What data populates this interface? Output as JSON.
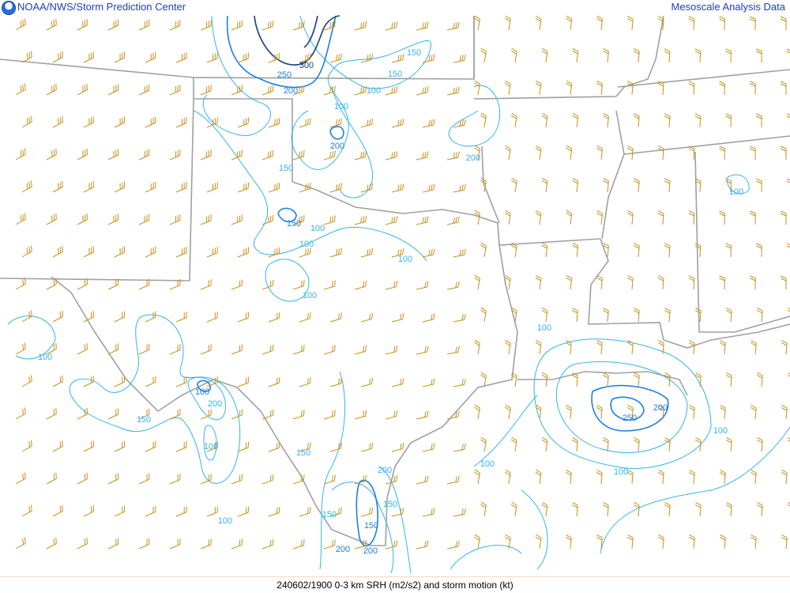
{
  "header": {
    "title_left": "NOAA/NWS/Storm Prediction Center",
    "title_right": "Mesoscale Analysis Data",
    "logo_icon": "noaa-logo"
  },
  "footer": {
    "caption": "240602/1900 0-3 km SRH (m2/s2) and storm motion (kt)"
  },
  "colors": {
    "border": "#a0a0a0",
    "barb": "#c8901a",
    "contour_100_150": "#33b5ea",
    "contour_200_250": "#1f7fe0",
    "contour_300": "#163f80",
    "title": "#1a3fbf"
  },
  "contour_levels": [
    100,
    150,
    200,
    250,
    300
  ],
  "contour_labels": [
    "300",
    "250",
    "200",
    "150",
    "150",
    "100",
    "100",
    "200",
    "150",
    "200",
    "150",
    "100",
    "100",
    "100",
    "100",
    "100",
    "100",
    "100",
    "200",
    "150",
    "100",
    "150",
    "100",
    "100",
    "150",
    "200",
    "200",
    "200",
    "150",
    "100",
    "100",
    "250",
    "200",
    "100",
    "150"
  ]
}
